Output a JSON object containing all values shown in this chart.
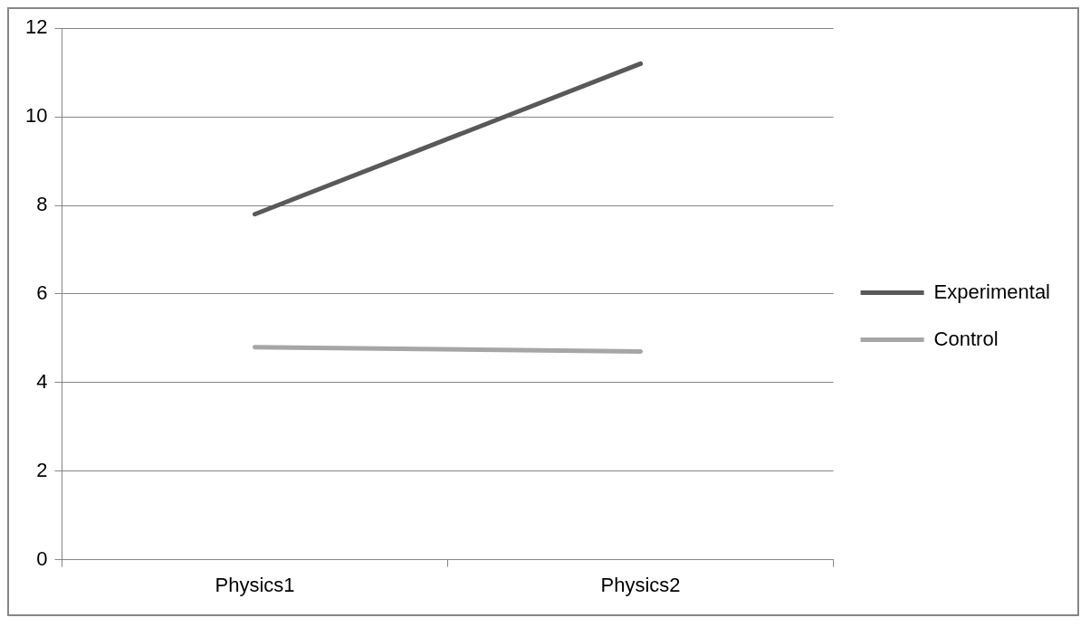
{
  "chart_data": {
    "type": "line",
    "categories": [
      "Physics1",
      "Physics2"
    ],
    "series": [
      {
        "name": "Experimental",
        "color": "#595959",
        "values": [
          7.8,
          11.2
        ]
      },
      {
        "name": "Control",
        "color": "#a6a6a6",
        "values": [
          4.8,
          4.7
        ]
      }
    ],
    "ylim": [
      0,
      12
    ],
    "yticks": [
      0,
      2,
      4,
      6,
      8,
      10,
      12
    ],
    "grid": "y",
    "legend": "right",
    "marker": "none",
    "line_style": "solid"
  }
}
